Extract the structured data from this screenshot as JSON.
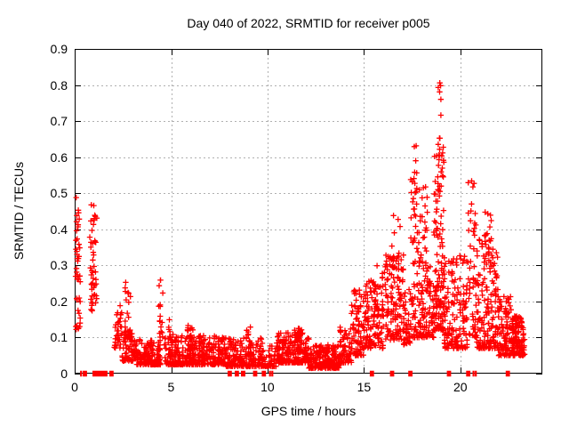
{
  "chart_data": {
    "type": "scatter",
    "title": "Day 040 of 2022, SRMTID for receiver p005",
    "xlabel": "GPS time / hours",
    "ylabel": "SRMTID / TECUs",
    "xlim": [
      0,
      24.25
    ],
    "ylim": [
      0,
      0.9
    ],
    "xticks": [
      0,
      5,
      10,
      15,
      20
    ],
    "yticks": [
      0,
      0.1,
      0.2,
      0.3,
      0.4,
      0.5,
      0.6,
      0.7,
      0.8,
      0.9
    ],
    "xtick_labels": [
      "0",
      "5",
      "10",
      "15",
      "20"
    ],
    "ytick_labels": [
      "0",
      "0.1",
      "0.2",
      "0.3",
      "0.4",
      "0.5",
      "0.6",
      "0.7",
      "0.8",
      "0.9"
    ],
    "grid": true,
    "legend": "none",
    "marker": "plus",
    "marker_color": "#ff0000",
    "grid_color": "#b0b0b0",
    "axis_color": "#000000",
    "series_name": "SRMTID for receiver p005",
    "notable_points": [
      {
        "x": 18.9,
        "y": 0.82,
        "note": "maximum"
      },
      {
        "x": 18.88,
        "y": 0.79
      },
      {
        "x": 17.6,
        "y": 0.65
      },
      {
        "x": 20.5,
        "y": 0.54
      },
      {
        "x": 0.1,
        "y": 0.49
      },
      {
        "x": 21.4,
        "y": 0.48
      },
      {
        "x": 16.5,
        "y": 0.45
      },
      {
        "x": 4.45,
        "y": 0.26
      },
      {
        "x": 2.75,
        "y": 0.26
      }
    ],
    "clusters": [
      {
        "x": [
          0.05,
          0.3
        ],
        "y": [
          0.12,
          0.49
        ],
        "n": 42,
        "bias": 1.2
      },
      {
        "x": [
          0.78,
          1.15
        ],
        "y": [
          0.17,
          0.47
        ],
        "n": 48,
        "bias": 1.2
      },
      {
        "x": [
          2.05,
          2.45
        ],
        "y": [
          0.07,
          0.19
        ],
        "n": 34,
        "bias": 1.5
      },
      {
        "x": [
          2.6,
          2.9
        ],
        "y": [
          0.1,
          0.265
        ],
        "n": 16,
        "bias": 1.3
      },
      {
        "x": [
          2.45,
          3.2
        ],
        "y": [
          0.035,
          0.125
        ],
        "n": 70,
        "bias": 2.0
      },
      {
        "x": [
          3.2,
          4.45
        ],
        "y": [
          0.025,
          0.095
        ],
        "n": 150,
        "bias": 2.2
      },
      {
        "x": [
          4.35,
          4.6
        ],
        "y": [
          0.06,
          0.26
        ],
        "n": 20,
        "bias": 1.6
      },
      {
        "x": [
          4.65,
          7.85
        ],
        "y": [
          0.025,
          0.105
        ],
        "n": 340,
        "bias": 2.2
      },
      {
        "x": [
          4.85,
          5.1
        ],
        "y": [
          0.05,
          0.155
        ],
        "n": 16,
        "bias": 1.6
      },
      {
        "x": [
          5.85,
          6.15
        ],
        "y": [
          0.05,
          0.135
        ],
        "n": 22,
        "bias": 1.6
      },
      {
        "x": [
          6.45,
          6.7
        ],
        "y": [
          0.05,
          0.12
        ],
        "n": 16,
        "bias": 1.6
      },
      {
        "x": [
          7.85,
          9.75
        ],
        "y": [
          0.02,
          0.1
        ],
        "n": 185,
        "bias": 2.2
      },
      {
        "x": [
          8.9,
          9.2
        ],
        "y": [
          0.05,
          0.13
        ],
        "n": 15,
        "bias": 1.6
      },
      {
        "x": [
          9.75,
          10.45
        ],
        "y": [
          0.02,
          0.08
        ],
        "n": 45,
        "bias": 2.0
      },
      {
        "x": [
          10.45,
          12.15
        ],
        "y": [
          0.03,
          0.115
        ],
        "n": 200,
        "bias": 2.0
      },
      {
        "x": [
          11.4,
          11.8
        ],
        "y": [
          0.06,
          0.14
        ],
        "n": 25,
        "bias": 1.5
      },
      {
        "x": [
          12.15,
          13.75
        ],
        "y": [
          0.015,
          0.08
        ],
        "n": 230,
        "bias": 2.0
      },
      {
        "x": [
          13.75,
          14.35
        ],
        "y": [
          0.03,
          0.135
        ],
        "n": 60,
        "bias": 1.8
      },
      {
        "x": [
          14.35,
          15.05
        ],
        "y": [
          0.05,
          0.24
        ],
        "n": 85,
        "bias": 1.9
      },
      {
        "x": [
          15.05,
          16.05
        ],
        "y": [
          0.07,
          0.28
        ],
        "n": 115,
        "bias": 1.7
      },
      {
        "x": [
          15.5,
          15.75
        ],
        "y": [
          0.15,
          0.31
        ],
        "n": 12,
        "bias": 1.3
      },
      {
        "x": [
          16.05,
          17.05
        ],
        "y": [
          0.09,
          0.33
        ],
        "n": 115,
        "bias": 1.6
      },
      {
        "x": [
          16.4,
          16.62
        ],
        "y": [
          0.22,
          0.45
        ],
        "n": 12,
        "bias": 1.2
      },
      {
        "x": [
          16.75,
          16.95
        ],
        "y": [
          0.2,
          0.43
        ],
        "n": 9,
        "bias": 1.2
      },
      {
        "x": [
          17.05,
          17.4
        ],
        "y": [
          0.08,
          0.26
        ],
        "n": 40,
        "bias": 1.7
      },
      {
        "x": [
          17.4,
          18.3
        ],
        "y": [
          0.1,
          0.55
        ],
        "n": 140,
        "bias": 1.8
      },
      {
        "x": [
          17.55,
          17.78
        ],
        "y": [
          0.45,
          0.66
        ],
        "n": 10,
        "bias": 1.0
      },
      {
        "x": [
          18.3,
          18.62
        ],
        "y": [
          0.1,
          0.3
        ],
        "n": 36,
        "bias": 1.6
      },
      {
        "x": [
          18.62,
          19.15
        ],
        "y": [
          0.12,
          0.63
        ],
        "n": 130,
        "bias": 1.9
      },
      {
        "x": [
          18.82,
          19.02
        ],
        "y": [
          0.6,
          0.825
        ],
        "n": 12,
        "bias": 1.0
      },
      {
        "x": [
          19.15,
          20.35
        ],
        "y": [
          0.07,
          0.33
        ],
        "n": 150,
        "bias": 1.9
      },
      {
        "x": [
          20.4,
          20.8
        ],
        "y": [
          0.1,
          0.54
        ],
        "n": 48,
        "bias": 1.7
      },
      {
        "x": [
          20.8,
          21.95
        ],
        "y": [
          0.07,
          0.38
        ],
        "n": 160,
        "bias": 1.8
      },
      {
        "x": [
          21.25,
          21.6
        ],
        "y": [
          0.3,
          0.48
        ],
        "n": 16,
        "bias": 1.2
      },
      {
        "x": [
          21.95,
          22.65
        ],
        "y": [
          0.05,
          0.22
        ],
        "n": 95,
        "bias": 1.7
      },
      {
        "x": [
          22.65,
          23.35
        ],
        "y": [
          0.05,
          0.16
        ],
        "n": 120,
        "bias": 1.5
      }
    ],
    "zero_runs": [
      [
        0.28,
        0.35
      ],
      [
        0.42,
        0.5
      ],
      [
        0.92,
        1.7
      ],
      [
        1.8,
        1.98
      ],
      [
        7.93,
        8.1
      ],
      [
        8.3,
        8.45
      ],
      [
        8.62,
        8.85
      ],
      [
        9.25,
        9.45
      ],
      [
        9.7,
        9.85
      ],
      [
        10.08,
        10.12
      ],
      [
        10.2,
        10.24
      ],
      [
        15.3,
        15.45
      ],
      [
        16.35,
        16.5
      ],
      [
        17.3,
        17.45
      ],
      [
        19.3,
        19.45
      ],
      [
        20.3,
        20.42
      ],
      [
        20.63,
        20.67
      ],
      [
        20.75,
        20.79
      ],
      [
        22.35,
        22.5
      ]
    ]
  }
}
